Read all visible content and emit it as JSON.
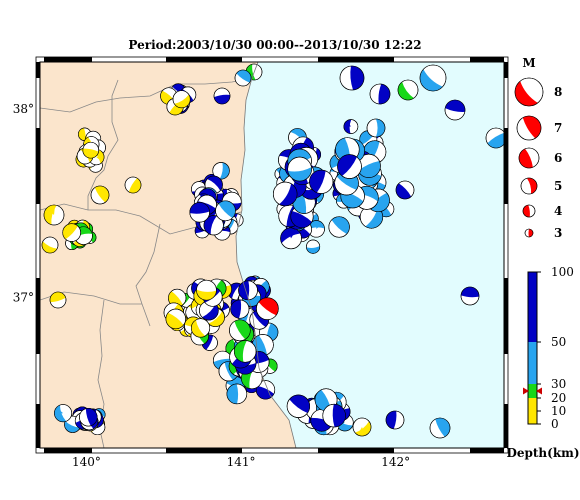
{
  "title": "Period:2003/10/30 00:00--2013/10/30 12:22",
  "axes": {
    "lon_ticks": [
      {
        "value": 140,
        "label": "140°"
      },
      {
        "value": 141,
        "label": "141°"
      },
      {
        "value": 142,
        "label": "142°"
      }
    ],
    "lat_ticks": [
      {
        "value": 38,
        "label": "38°"
      },
      {
        "value": 37,
        "label": "37°"
      }
    ],
    "lon_range": [
      139.7,
      142.7
    ],
    "lat_range": [
      36.2,
      38.25
    ]
  },
  "colors": {
    "land": "#fbe5cc",
    "sea": "#e2fcfe",
    "depth_shallow": "#ffe600",
    "depth_mid": "#18d818",
    "depth_upper": "#28a4ef",
    "depth_deep": "#0202c4",
    "highlight": "#ff0000"
  },
  "magnitude_legend": {
    "title": "M",
    "items": [
      {
        "label": "8",
        "mag": 8
      },
      {
        "label": "7",
        "mag": 7
      },
      {
        "label": "6",
        "mag": 6
      },
      {
        "label": "5",
        "mag": 5
      },
      {
        "label": "4",
        "mag": 4
      },
      {
        "label": "3",
        "mag": 3
      }
    ]
  },
  "depth_scale": {
    "title": "Depth(km)",
    "ticks": [
      "100",
      "50",
      "30",
      "20",
      "10",
      "0"
    ],
    "tick_values": [
      100,
      50,
      30,
      20,
      10,
      0
    ],
    "marker_depth": 25
  },
  "highlight_event": {
    "lon": 141.17,
    "lat": 36.94,
    "mag": 6
  }
}
